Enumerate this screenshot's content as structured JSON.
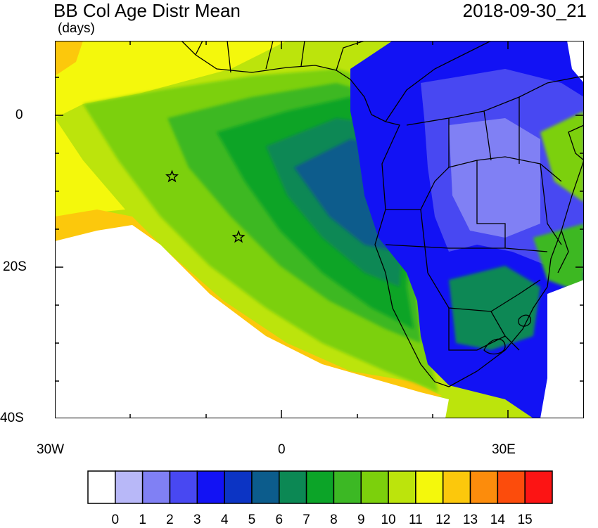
{
  "header": {
    "title": "BB Col Age Distr Mean",
    "units": "(days)",
    "timestamp": "2018-09-30_21"
  },
  "axes": {
    "y_ticks": [
      "0",
      "20S",
      "40S"
    ],
    "x_ticks": [
      "30W",
      "0",
      "30E"
    ]
  },
  "markers": [
    {
      "name": "star-marker-1",
      "lon": -14.5,
      "lat": -8
    },
    {
      "name": "star-marker-2",
      "lon": -5.7,
      "lat": -16
    }
  ],
  "colorbar": {
    "labels": [
      "0",
      "1",
      "2",
      "3",
      "4",
      "5",
      "6",
      "7",
      "8",
      "9",
      "10",
      "11",
      "12",
      "13",
      "14",
      "15"
    ],
    "colors": [
      "#ffffff",
      "#b8b8f8",
      "#8080f4",
      "#4848f2",
      "#1212f4",
      "#0c34c4",
      "#0c5c8c",
      "#0c8854",
      "#0ca428",
      "#3cb824",
      "#7cd00c",
      "#bce40c",
      "#f4f80c",
      "#fcc80c",
      "#fc8c0c",
      "#fc4c0c",
      "#fc1414"
    ]
  }
}
